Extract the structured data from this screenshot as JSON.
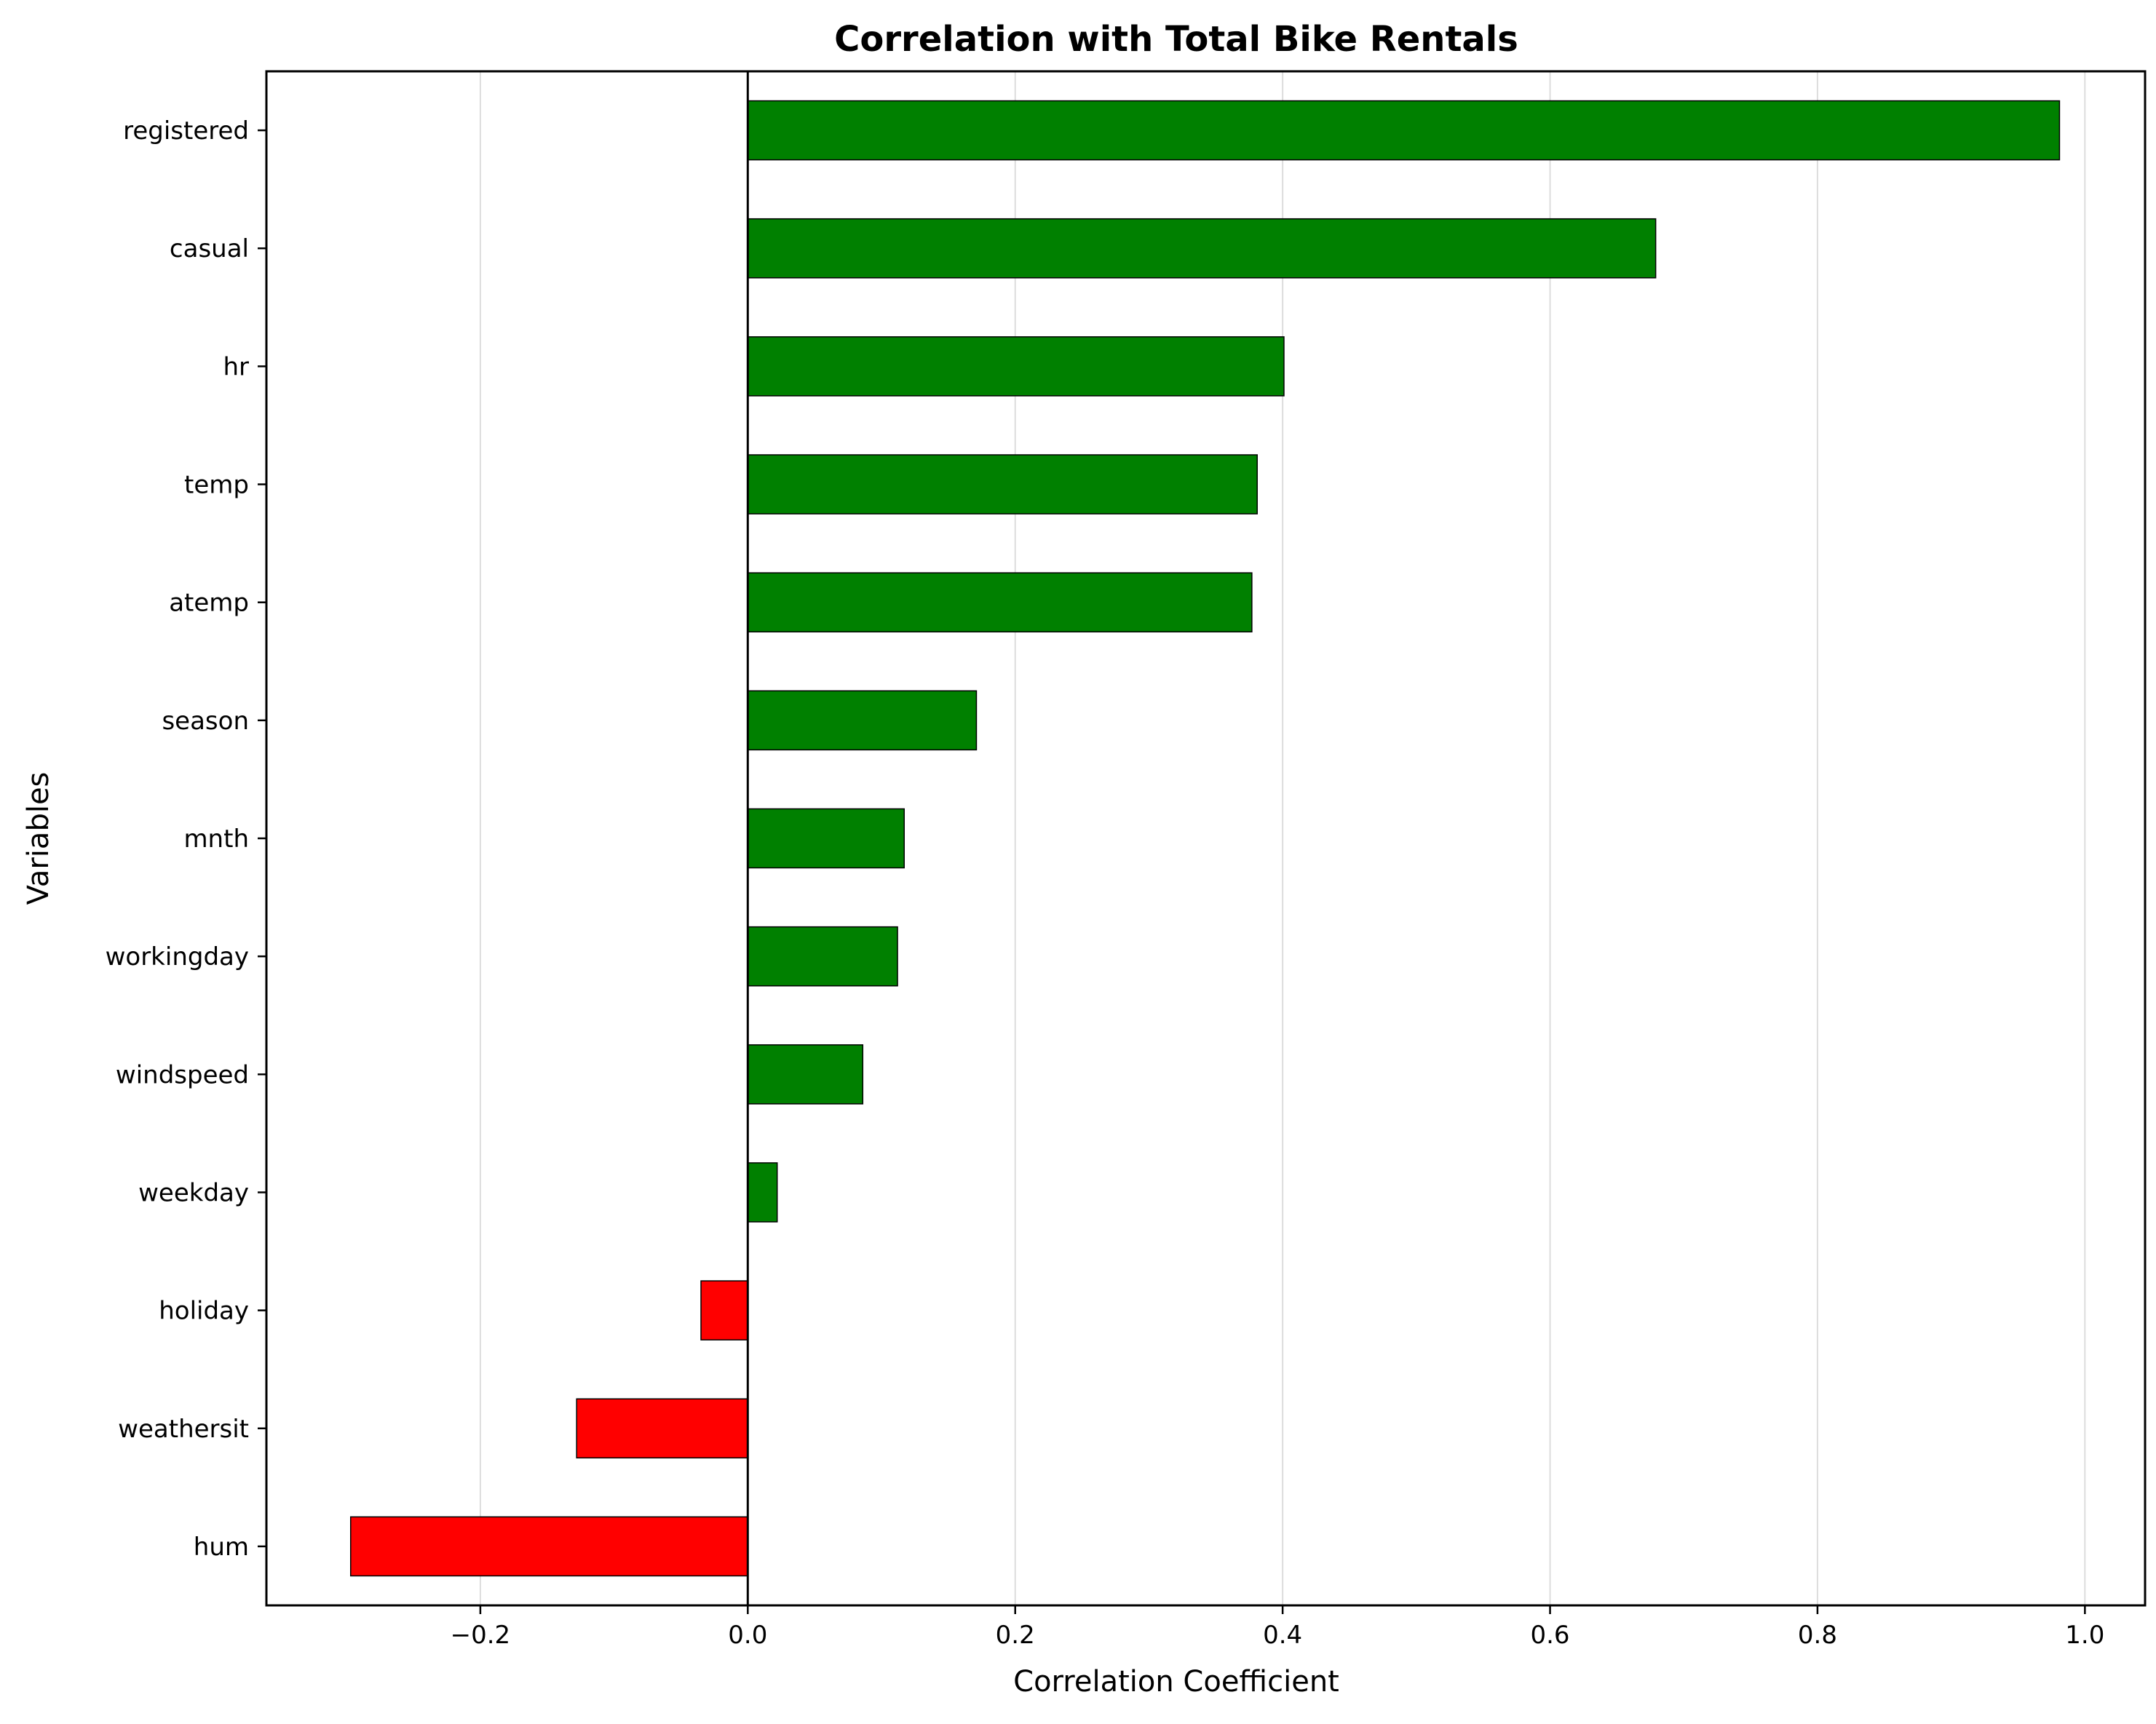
{
  "chart_data": {
    "type": "bar",
    "orientation": "horizontal",
    "title": "Correlation with Total Bike Rentals",
    "xlabel": "Correlation Coefficient",
    "ylabel": "Variables",
    "xlim": [
      -0.36,
      1.045
    ],
    "xticks": [
      -0.2,
      0.0,
      0.2,
      0.4,
      0.6,
      0.8,
      1.0
    ],
    "xtick_labels": [
      "−0.2",
      "0.0",
      "0.2",
      "0.4",
      "0.6",
      "0.8",
      "1.0"
    ],
    "categories": [
      "registered",
      "casual",
      "hr",
      "temp",
      "atemp",
      "season",
      "mnth",
      "workingday",
      "windspeed",
      "weekday",
      "holiday",
      "weathersit",
      "hum"
    ],
    "values": [
      0.981,
      0.679,
      0.401,
      0.381,
      0.377,
      0.171,
      0.117,
      0.112,
      0.086,
      0.022,
      -0.035,
      -0.128,
      -0.297
    ],
    "grid": "vertical",
    "colors": {
      "positive": "#008000",
      "negative": "#ff0000",
      "edge": "#000000",
      "grid": "#dddddd",
      "zero_line": "#000000"
    }
  }
}
